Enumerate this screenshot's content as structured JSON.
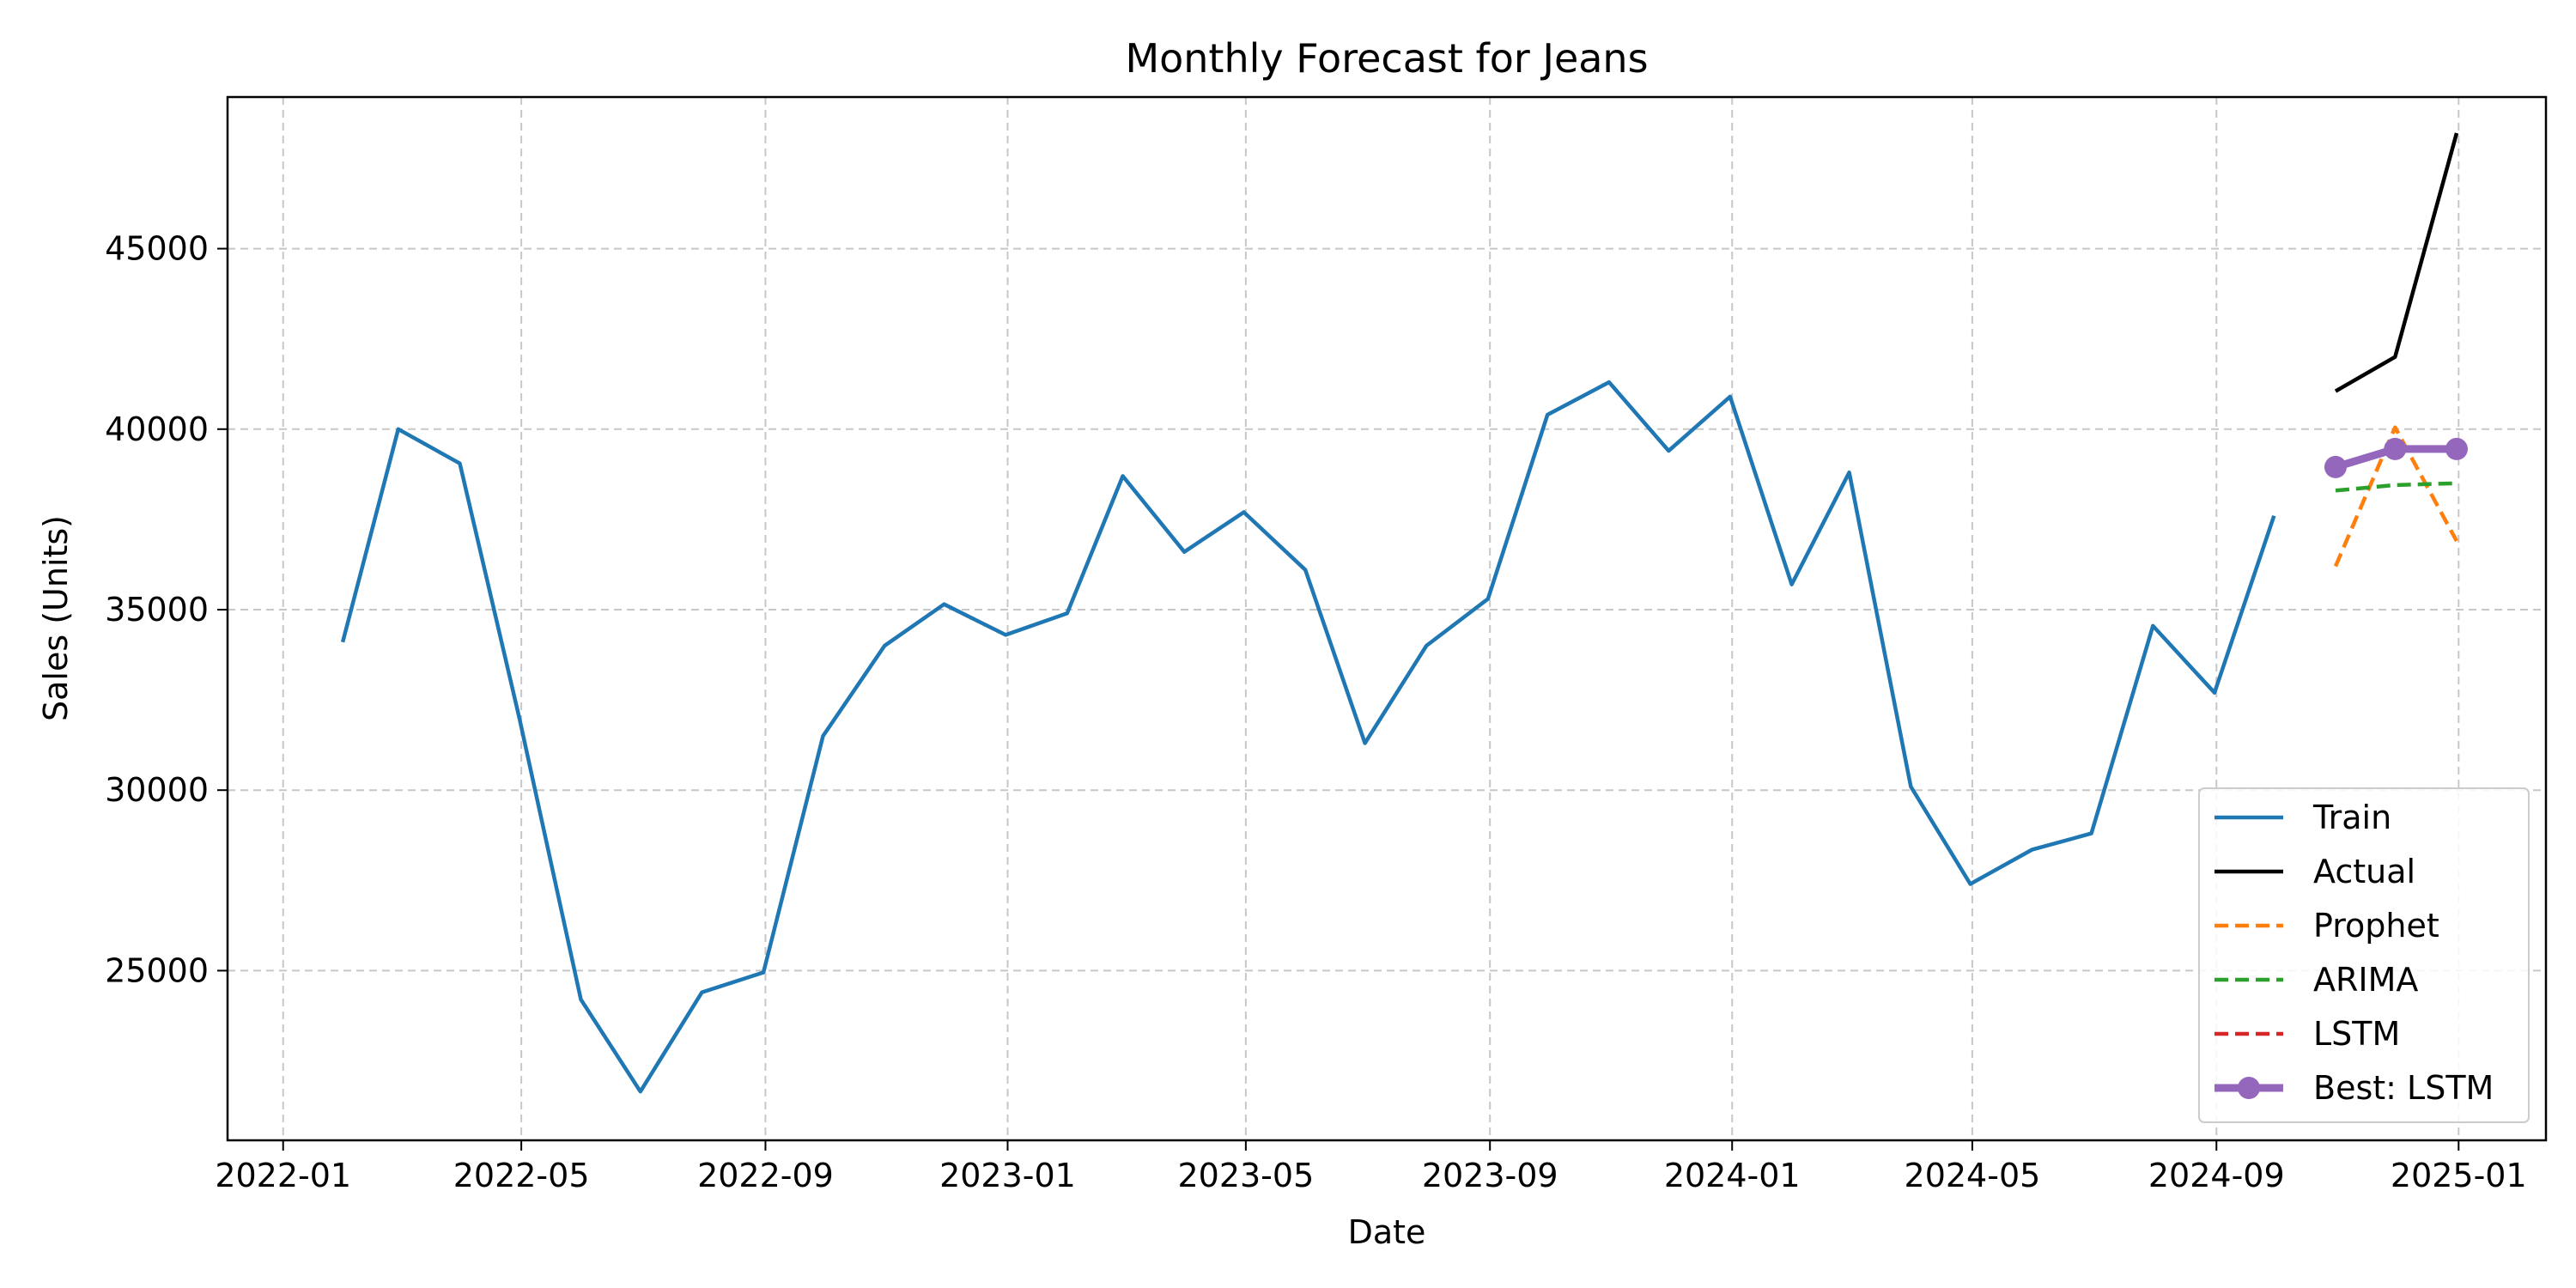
{
  "chart_data": {
    "type": "line",
    "title": "Monthly Forecast for Jeans",
    "xlabel": "Date",
    "ylabel": "Sales (Units)",
    "grid": true,
    "legend_position": "bottom-right",
    "xlim": [
      "2021-12-04",
      "2025-02-14"
    ],
    "ylim": [
      20300,
      49200
    ],
    "x_ticks": [
      "2022-01",
      "2022-05",
      "2022-09",
      "2023-01",
      "2023-05",
      "2023-09",
      "2024-01",
      "2024-05",
      "2024-09",
      "2025-01"
    ],
    "y_ticks": [
      25000,
      30000,
      35000,
      40000,
      45000
    ],
    "series": [
      {
        "name": "Train",
        "color": "#1f77b4",
        "style": "solid",
        "x": [
          "2022-01-31",
          "2022-02-28",
          "2022-03-31",
          "2022-04-30",
          "2022-05-31",
          "2022-06-30",
          "2022-07-31",
          "2022-08-31",
          "2022-09-30",
          "2022-10-31",
          "2022-11-30",
          "2022-12-31",
          "2023-01-31",
          "2023-02-28",
          "2023-03-31",
          "2023-04-30",
          "2023-05-31",
          "2023-06-30",
          "2023-07-31",
          "2023-08-31",
          "2023-09-30",
          "2023-10-31",
          "2023-11-30",
          "2023-12-31",
          "2024-01-31",
          "2024-02-29",
          "2024-03-31",
          "2024-04-30",
          "2024-05-31",
          "2024-06-30",
          "2024-07-31",
          "2024-08-31",
          "2024-09-30"
        ],
        "y": [
          34100,
          40000,
          39050,
          32000,
          24200,
          21650,
          24400,
          24950,
          31500,
          34000,
          35150,
          34300,
          34900,
          38700,
          36600,
          37700,
          36100,
          31300,
          34000,
          35300,
          40400,
          41300,
          39400,
          40900,
          35700,
          38800,
          30100,
          27400,
          28350,
          28800,
          34550,
          32700,
          37600
        ]
      },
      {
        "name": "Actual",
        "color": "#000000",
        "style": "solid",
        "x": [
          "2024-10-31",
          "2024-11-30",
          "2024-12-31"
        ],
        "y": [
          41050,
          42000,
          48200
        ]
      },
      {
        "name": "Prophet",
        "color": "#ff7f0e",
        "style": "dashed",
        "x": [
          "2024-10-31",
          "2024-11-30",
          "2024-12-31"
        ],
        "y": [
          36200,
          40050,
          36900
        ]
      },
      {
        "name": "ARIMA",
        "color": "#2ca02c",
        "style": "dashed",
        "x": [
          "2024-10-31",
          "2024-11-30",
          "2024-12-31"
        ],
        "y": [
          38300,
          38450,
          38500
        ]
      },
      {
        "name": "LSTM",
        "color": "#d62728",
        "style": "dashed",
        "x": [
          "2024-10-31",
          "2024-11-30",
          "2024-12-31"
        ],
        "y": [
          38950,
          39450,
          39450
        ]
      },
      {
        "name": "Best: LSTM",
        "color": "#9467bd",
        "style": "solid-markers",
        "x": [
          "2024-10-31",
          "2024-11-30",
          "2024-12-31"
        ],
        "y": [
          38950,
          39450,
          39450
        ]
      }
    ]
  }
}
